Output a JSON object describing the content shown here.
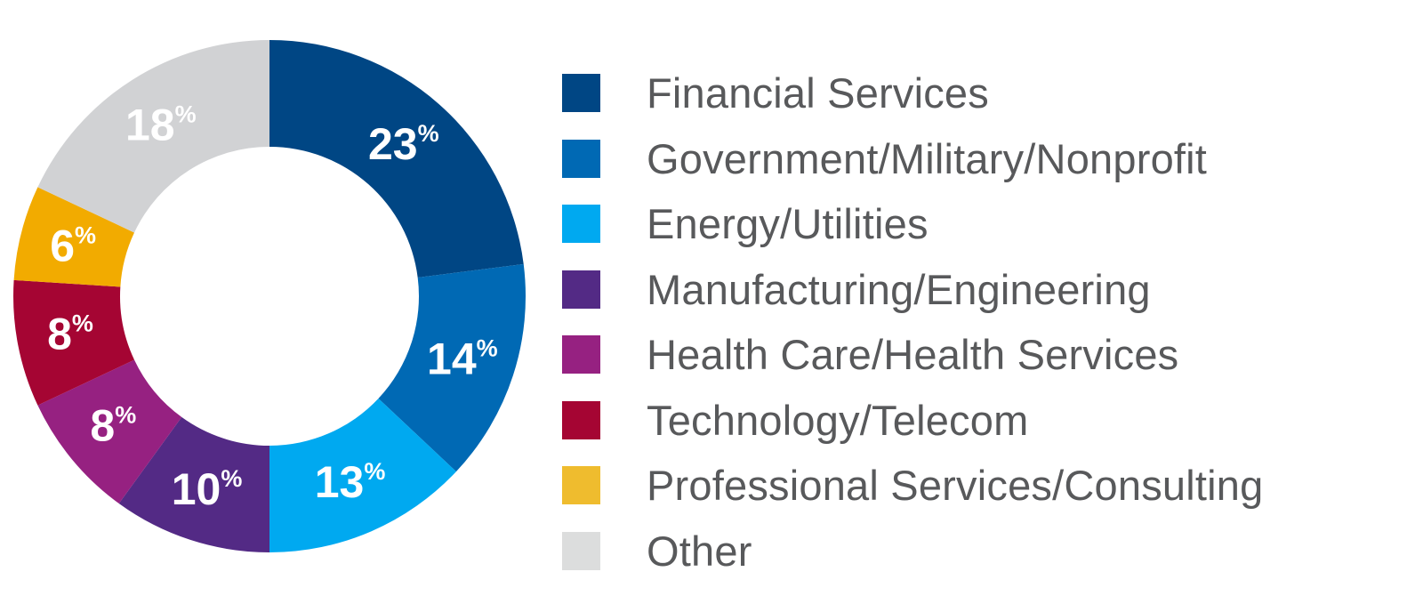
{
  "chart_data": {
    "type": "pie",
    "style": "donut",
    "categories": [
      "Financial Services",
      "Government/Military/Nonprofit",
      "Energy/Utilities",
      "Manufacturing/Engineering",
      "Health Care/Health Services",
      "Technology/Telecom",
      "Professional Services/Consulting",
      "Other"
    ],
    "values": [
      23,
      14,
      13,
      10,
      8,
      8,
      6,
      18
    ],
    "value_labels": [
      "23%",
      "14%",
      "13%",
      "10%",
      "8%",
      "8%",
      "6%",
      "18%"
    ],
    "colors": [
      "#004684",
      "#0069b4",
      "#00a9f0",
      "#532a85",
      "#962181",
      "#a50533",
      "#f2ab00",
      "#d1d2d4"
    ],
    "legend_colors": [
      "#004684",
      "#0069b4",
      "#00a9f0",
      "#532a85",
      "#962181",
      "#a50533",
      "#efbc2e",
      "#dcdddd"
    ],
    "legend_position": "right",
    "start_angle": "12 o'clock",
    "direction": "clockwise"
  }
}
